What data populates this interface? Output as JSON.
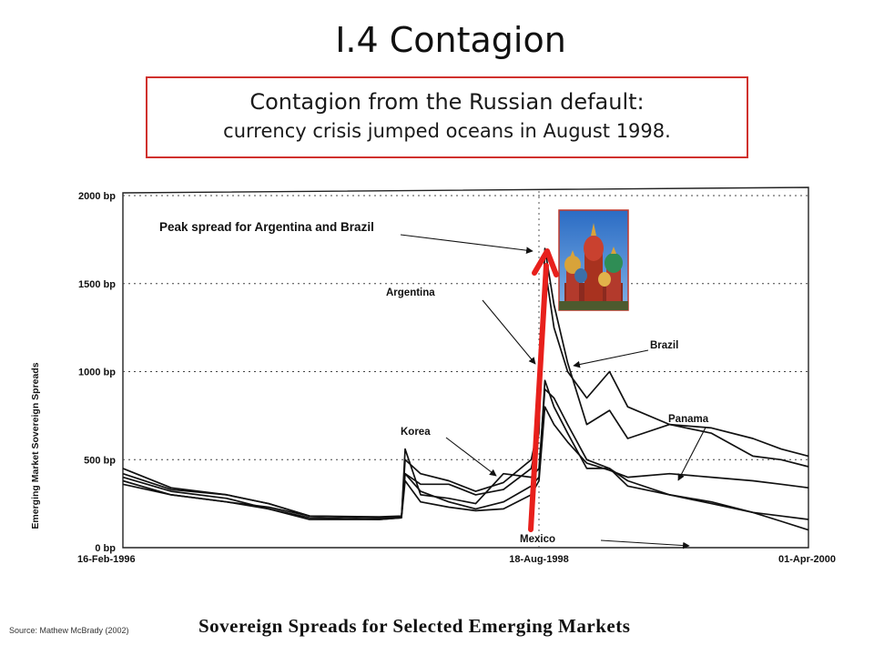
{
  "slide": {
    "title": "I.4 Contagion",
    "callout_line1": "Contagion from the Russian default:",
    "callout_line2": "currency crisis jumped oceans in August 1998.",
    "source": "Source: Mathew McBrady (2002)",
    "caption": "Sovereign Spreads for Selected Emerging Markets",
    "image_icon": "st-basils-cathedral-photo",
    "colors": {
      "callout_border": "#d0312d",
      "arrow": "#e8201c"
    }
  },
  "chart_data": {
    "type": "line",
    "ylabel": "Emerging Market Sovereign Spreads",
    "ylim": [
      0,
      2000
    ],
    "y_ticks": [
      "0 bp",
      "500 bp",
      "1000 bp",
      "1500 bp",
      "2000 bp"
    ],
    "y_tick_values": [
      0,
      500,
      1000,
      1500,
      2000
    ],
    "x_range": [
      "1996-02-16",
      "2000-04-01"
    ],
    "x_ticks": [
      "16-Feb-1996",
      "18-Aug-1998",
      "01-Apr-2000"
    ],
    "x_tick_dates": [
      "1996-02-16",
      "1998-08-18",
      "2000-04-01"
    ],
    "grid": true,
    "annotations": [
      "Peak spread for Argentina and Brazil",
      "Argentina",
      "Brazil",
      "Korea",
      "Panama",
      "Mexico"
    ],
    "series": [
      {
        "name": "Argentina",
        "points": [
          [
            "1996-02-16",
            450
          ],
          [
            "1996-06-01",
            340
          ],
          [
            "1996-10-01",
            300
          ],
          [
            "1997-01-01",
            250
          ],
          [
            "1997-04-01",
            180
          ],
          [
            "1997-09-01",
            175
          ],
          [
            "1997-10-20",
            180
          ],
          [
            "1997-10-28",
            420
          ],
          [
            "1997-12-01",
            360
          ],
          [
            "1998-02-01",
            360
          ],
          [
            "1998-04-01",
            300
          ],
          [
            "1998-06-01",
            330
          ],
          [
            "1998-08-01",
            450
          ],
          [
            "1998-08-18",
            650
          ],
          [
            "1998-08-31",
            1700
          ],
          [
            "1998-09-20",
            1380
          ],
          [
            "1998-10-20",
            1050
          ],
          [
            "1998-12-01",
            700
          ],
          [
            "1999-01-20",
            780
          ],
          [
            "1999-03-01",
            620
          ],
          [
            "1999-06-01",
            700
          ],
          [
            "1999-09-01",
            650
          ],
          [
            "1999-12-01",
            520
          ],
          [
            "2000-02-01",
            500
          ],
          [
            "2000-04-01",
            460
          ]
        ]
      },
      {
        "name": "Brazil",
        "points": [
          [
            "1996-02-16",
            420
          ],
          [
            "1996-06-01",
            330
          ],
          [
            "1996-10-01",
            300
          ],
          [
            "1997-01-01",
            250
          ],
          [
            "1997-04-01",
            180
          ],
          [
            "1997-09-01",
            170
          ],
          [
            "1997-10-20",
            175
          ],
          [
            "1997-10-28",
            500
          ],
          [
            "1997-12-01",
            420
          ],
          [
            "1998-02-01",
            380
          ],
          [
            "1998-04-01",
            320
          ],
          [
            "1998-06-01",
            370
          ],
          [
            "1998-08-01",
            500
          ],
          [
            "1998-08-18",
            700
          ],
          [
            "1998-08-31",
            1600
          ],
          [
            "1998-09-20",
            1250
          ],
          [
            "1998-10-20",
            1000
          ],
          [
            "1998-12-01",
            850
          ],
          [
            "1999-01-20",
            1000
          ],
          [
            "1999-03-01",
            800
          ],
          [
            "1999-06-01",
            700
          ],
          [
            "1999-09-01",
            680
          ],
          [
            "1999-12-01",
            620
          ],
          [
            "2000-02-01",
            560
          ],
          [
            "2000-04-01",
            520
          ]
        ]
      },
      {
        "name": "Korea",
        "points": [
          [
            "1996-02-16",
            400
          ],
          [
            "1996-06-01",
            320
          ],
          [
            "1996-10-01",
            280
          ],
          [
            "1997-01-01",
            220
          ],
          [
            "1997-04-01",
            160
          ],
          [
            "1997-09-01",
            160
          ],
          [
            "1997-10-20",
            170
          ],
          [
            "1997-10-28",
            560
          ],
          [
            "1997-12-01",
            300
          ],
          [
            "1998-02-01",
            280
          ],
          [
            "1998-04-01",
            250
          ],
          [
            "1998-06-01",
            420
          ],
          [
            "1998-08-01",
            400
          ],
          [
            "1998-08-18",
            450
          ],
          [
            "1998-08-31",
            900
          ],
          [
            "1998-09-20",
            850
          ],
          [
            "1998-10-20",
            700
          ],
          [
            "1998-12-01",
            500
          ],
          [
            "1999-01-20",
            450
          ],
          [
            "1999-03-01",
            350
          ],
          [
            "1999-06-01",
            300
          ],
          [
            "1999-09-01",
            250
          ],
          [
            "1999-12-01",
            200
          ],
          [
            "2000-02-01",
            180
          ],
          [
            "2000-04-01",
            160
          ]
        ]
      },
      {
        "name": "Panama",
        "points": [
          [
            "1996-02-16",
            380
          ],
          [
            "1996-06-01",
            300
          ],
          [
            "1996-10-01",
            260
          ],
          [
            "1997-01-01",
            220
          ],
          [
            "1997-04-01",
            170
          ],
          [
            "1997-09-01",
            160
          ],
          [
            "1997-10-20",
            170
          ],
          [
            "1997-10-28",
            380
          ],
          [
            "1997-12-01",
            260
          ],
          [
            "1998-02-01",
            230
          ],
          [
            "1998-04-01",
            210
          ],
          [
            "1998-06-01",
            220
          ],
          [
            "1998-08-01",
            300
          ],
          [
            "1998-08-18",
            380
          ],
          [
            "1998-08-31",
            800
          ],
          [
            "1998-09-20",
            700
          ],
          [
            "1998-10-20",
            600
          ],
          [
            "1998-12-01",
            480
          ],
          [
            "1999-01-20",
            440
          ],
          [
            "1999-03-01",
            400
          ],
          [
            "1999-06-01",
            420
          ],
          [
            "1999-09-01",
            400
          ],
          [
            "1999-12-01",
            380
          ],
          [
            "2000-02-01",
            360
          ],
          [
            "2000-04-01",
            340
          ]
        ]
      },
      {
        "name": "Mexico",
        "points": [
          [
            "1996-02-16",
            360
          ],
          [
            "1996-06-01",
            300
          ],
          [
            "1996-10-01",
            260
          ],
          [
            "1997-01-01",
            230
          ],
          [
            "1997-04-01",
            180
          ],
          [
            "1997-09-01",
            170
          ],
          [
            "1997-10-20",
            175
          ],
          [
            "1997-10-28",
            420
          ],
          [
            "1997-12-01",
            320
          ],
          [
            "1998-02-01",
            260
          ],
          [
            "1998-04-01",
            220
          ],
          [
            "1998-06-01",
            260
          ],
          [
            "1998-08-01",
            350
          ],
          [
            "1998-08-18",
            400
          ],
          [
            "1998-08-31",
            950
          ],
          [
            "1998-09-20",
            800
          ],
          [
            "1998-10-20",
            650
          ],
          [
            "1998-12-01",
            450
          ],
          [
            "1999-01-20",
            450
          ],
          [
            "1999-03-01",
            380
          ],
          [
            "1999-06-01",
            300
          ],
          [
            "1999-09-01",
            260
          ],
          [
            "1999-12-01",
            200
          ],
          [
            "2000-02-01",
            150
          ],
          [
            "2000-04-01",
            100
          ]
        ]
      }
    ]
  }
}
